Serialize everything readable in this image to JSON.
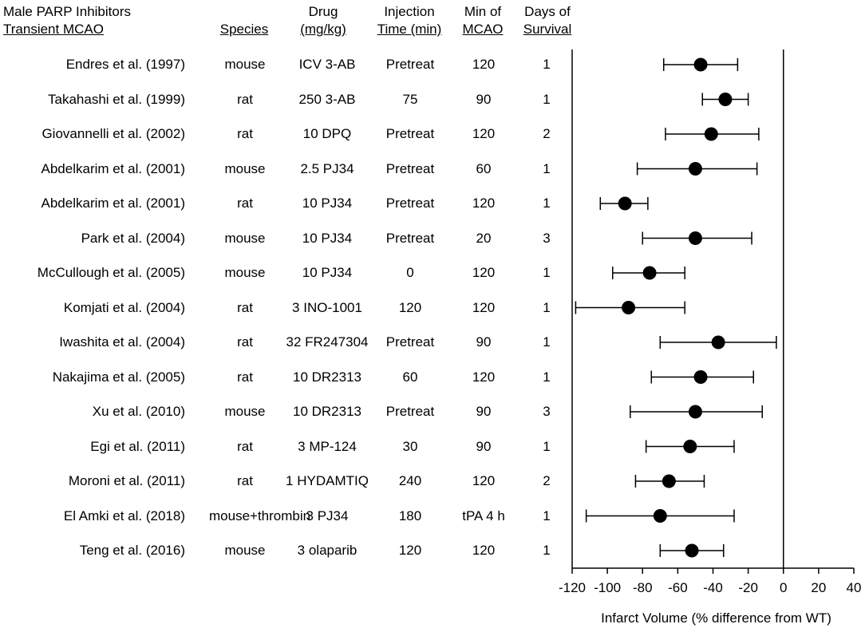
{
  "header": {
    "title_line1": "Male PARP Inhibitors",
    "title_line2": "Transient MCAO",
    "species": "Species",
    "drug_line1": "Drug",
    "drug_line2": "(mg/kg)",
    "injection_line1": "Injection",
    "injection_line2": "Time (min)",
    "mcao_line1": "Min of",
    "mcao_line2": "MCAO",
    "survival_line1": "Days of",
    "survival_line2": "Survival"
  },
  "rows": [
    {
      "study": "Endres et al. (1997)",
      "species": "mouse",
      "drug": "ICV 3-AB",
      "injection": "Pretreat",
      "mcao": "120",
      "survival": "1"
    },
    {
      "study": "Takahashi et al. (1999)",
      "species": "rat",
      "drug": "250 3-AB",
      "injection": "75",
      "mcao": "90",
      "survival": "1"
    },
    {
      "study": "Giovannelli et al. (2002)",
      "species": "rat",
      "drug": "10 DPQ",
      "injection": "Pretreat",
      "mcao": "120",
      "survival": "2"
    },
    {
      "study": "Abdelkarim et al. (2001)",
      "species": "mouse",
      "drug": "2.5 PJ34",
      "injection": "Pretreat",
      "mcao": "60",
      "survival": "1"
    },
    {
      "study": "Abdelkarim et al. (2001)",
      "species": "rat",
      "drug": "10  PJ34",
      "injection": "Pretreat",
      "mcao": "120",
      "survival": "1"
    },
    {
      "study": "Park et al. (2004)",
      "species": "mouse",
      "drug": "10  PJ34",
      "injection": "Pretreat",
      "mcao": "20",
      "survival": "3"
    },
    {
      "study": "McCullough et al. (2005)",
      "species": "mouse",
      "drug": "10  PJ34",
      "injection": "0",
      "mcao": "120",
      "survival": "1"
    },
    {
      "study": "Komjati et al. (2004)",
      "species": "rat",
      "drug": "3  INO-1001",
      "injection": "120",
      "mcao": "120",
      "survival": "1"
    },
    {
      "study": "Iwashita et al. (2004)",
      "species": "rat",
      "drug": "32 FR247304",
      "injection": "Pretreat",
      "mcao": "90",
      "survival": "1"
    },
    {
      "study": "Nakajima et al. (2005)",
      "species": "rat",
      "drug": "10  DR2313",
      "injection": "60",
      "mcao": "120",
      "survival": "1"
    },
    {
      "study": "Xu et al. (2010)",
      "species": "mouse",
      "drug": "10  DR2313",
      "injection": "Pretreat",
      "mcao": "90",
      "survival": "3"
    },
    {
      "study": "Egi et al. (2011)",
      "species": "rat",
      "drug": "3  MP-124",
      "injection": "30",
      "mcao": "90",
      "survival": "1"
    },
    {
      "study": "Moroni et al. (2011)",
      "species": "rat",
      "drug": "1 HYDAMTIQ",
      "injection": "240",
      "mcao": "120",
      "survival": "2"
    },
    {
      "study": "El Amki et al. (2018)",
      "species": "mouse+thrombin",
      "drug": "3 PJ34",
      "injection": "180",
      "mcao": "tPA 4 h",
      "survival": "1"
    },
    {
      "study": "Teng et al. (2016)",
      "species": "mouse",
      "drug": "3 olaparib",
      "injection": "120",
      "mcao": "120",
      "survival": "1"
    }
  ],
  "chart_data": {
    "type": "scatter",
    "subtype": "forest-plot",
    "xlabel": "Infarct Volume (% difference from WT)",
    "xlim": [
      -120,
      40
    ],
    "xticks": [
      -120,
      -100,
      -80,
      -60,
      -40,
      -20,
      0,
      20,
      40
    ],
    "reference_line_x": 0,
    "categories": [
      "Endres et al. (1997)",
      "Takahashi et al. (1999)",
      "Giovannelli et al. (2002)",
      "Abdelkarim et al. (2001)",
      "Abdelkarim et al. (2001)",
      "Park et al. (2004)",
      "McCullough et al. (2005)",
      "Komjati et al. (2004)",
      "Iwashita et al. (2004)",
      "Nakajima et al. (2005)",
      "Xu et al. (2010)",
      "Egi et al. (2011)",
      "Moroni et al. (2011)",
      "El Amki et al. (2018)",
      "Teng et al. (2016)"
    ],
    "points": [
      {
        "mean": -47,
        "low": -68,
        "high": -26
      },
      {
        "mean": -33,
        "low": -46,
        "high": -20
      },
      {
        "mean": -41,
        "low": -67,
        "high": -14
      },
      {
        "mean": -50,
        "low": -83,
        "high": -15
      },
      {
        "mean": -90,
        "low": -104,
        "high": -77
      },
      {
        "mean": -50,
        "low": -80,
        "high": -18
      },
      {
        "mean": -76,
        "low": -97,
        "high": -56
      },
      {
        "mean": -88,
        "low": -118,
        "high": -56
      },
      {
        "mean": -37,
        "low": -70,
        "high": -4
      },
      {
        "mean": -47,
        "low": -75,
        "high": -17
      },
      {
        "mean": -50,
        "low": -87,
        "high": -12
      },
      {
        "mean": -53,
        "low": -78,
        "high": -28
      },
      {
        "mean": -65,
        "low": -84,
        "high": -45
      },
      {
        "mean": -70,
        "low": -112,
        "high": -28
      },
      {
        "mean": -52,
        "low": -70,
        "high": -34
      }
    ]
  }
}
